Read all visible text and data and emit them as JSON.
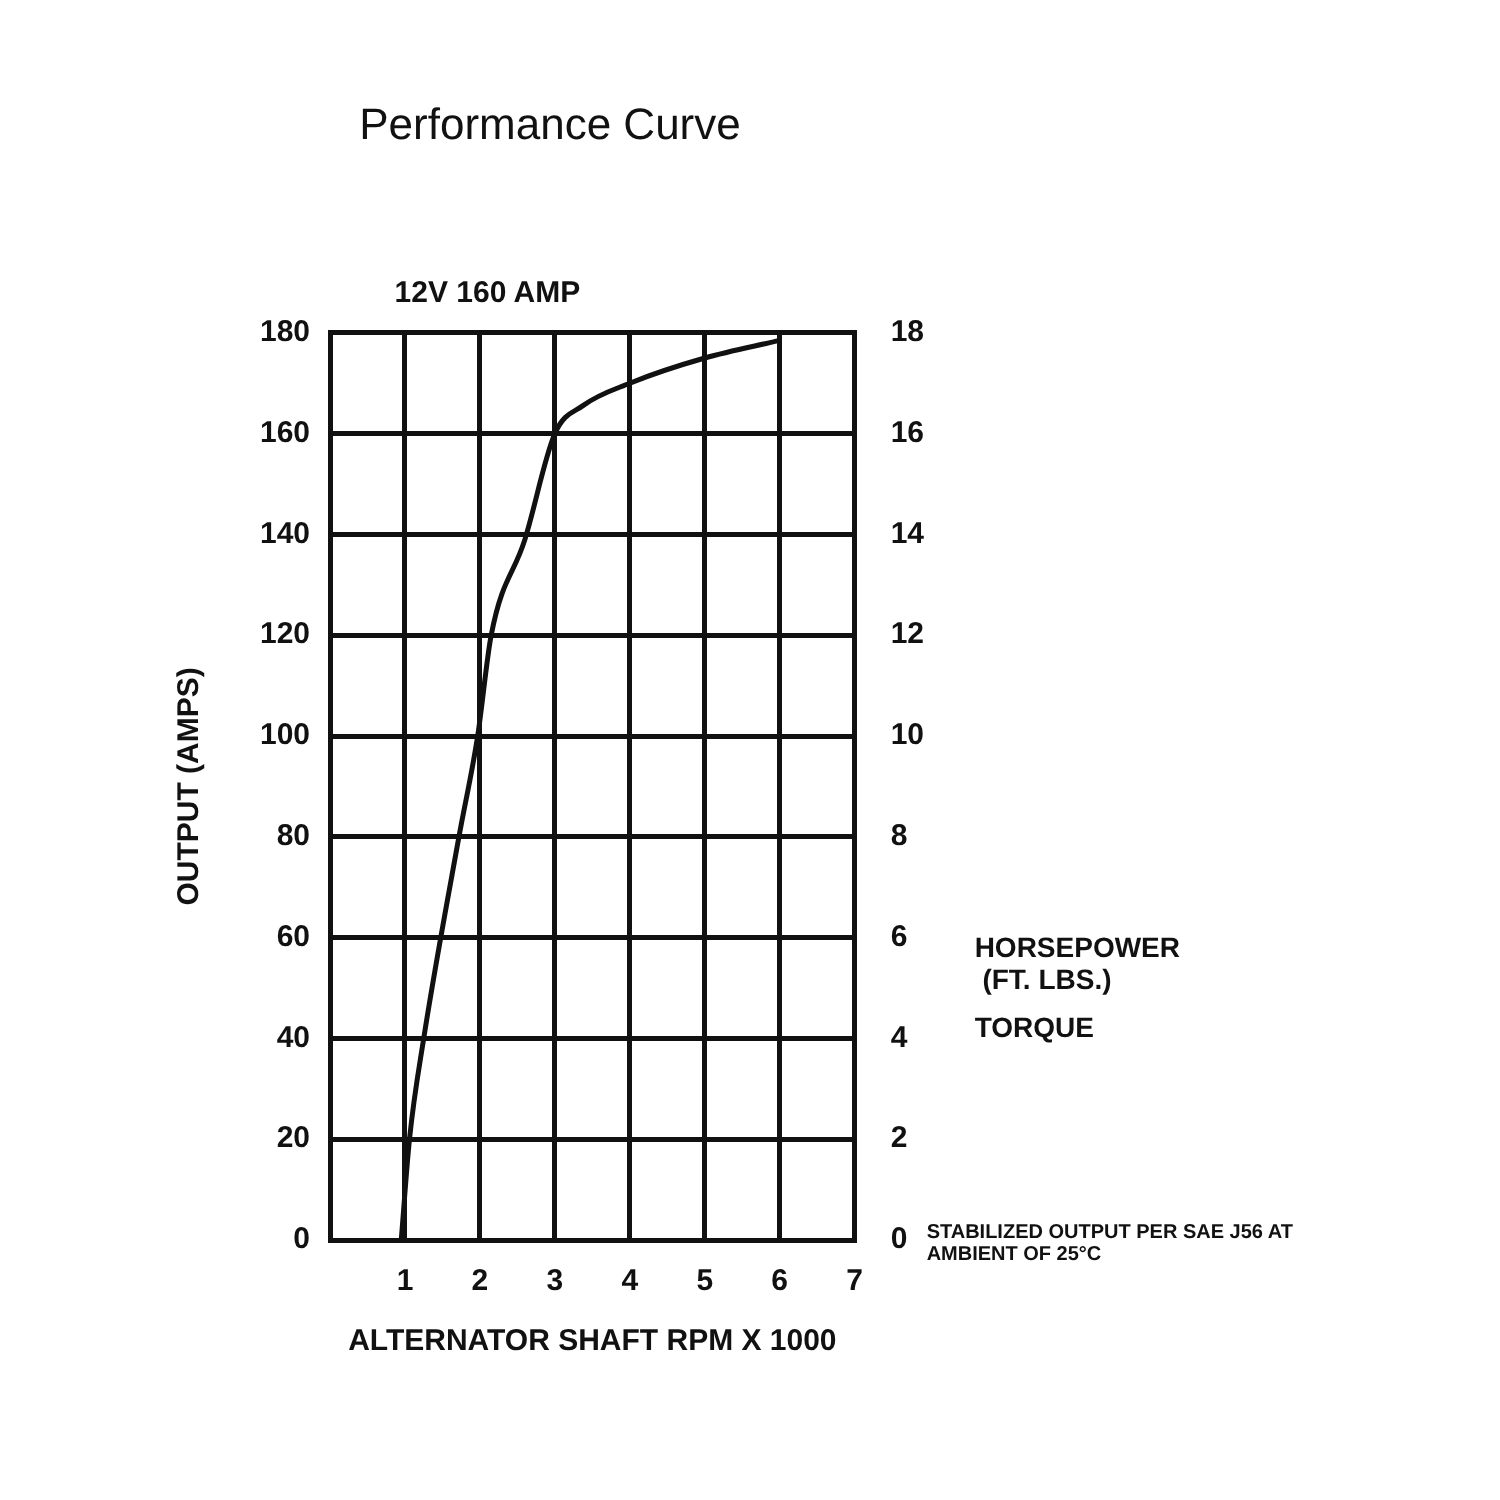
{
  "chart_data": {
    "type": "line",
    "title": "Performance Curve",
    "subtitle": "12V 160 AMP",
    "xlabel": "ALTERNATOR SHAFT RPM X 1000",
    "ylabel": "OUTPUT (AMPS)",
    "x": [
      0.95,
      1.06,
      1.25,
      1.72,
      1.97,
      2.15,
      2.6,
      3.0,
      3.37,
      4,
      5,
      6
    ],
    "series": [
      {
        "color": "#111111",
        "values": [
          0,
          20,
          40,
          80,
          100,
          120,
          139,
          160,
          165.5,
          170,
          175,
          178.5
        ]
      }
    ],
    "xlim": [
      0,
      7
    ],
    "xticks": [
      1,
      2,
      3,
      4,
      5,
      6,
      7
    ],
    "ylim": [
      0,
      180
    ],
    "yticks": [
      0,
      20,
      40,
      60,
      80,
      100,
      120,
      140,
      160,
      180
    ],
    "y2lim": [
      0,
      18
    ],
    "y2ticks": [
      0,
      2,
      4,
      6,
      8,
      10,
      12,
      14,
      16,
      18
    ],
    "grid": true,
    "legend": false,
    "marker": "none",
    "line_style": "solid",
    "annotations": [
      "HORSEPOWER\n(FT. LBS.)",
      "TORQUE",
      "STABILIZED OUTPUT PER SAE J56 AT\nAMBIENT OF 25°C"
    ]
  }
}
